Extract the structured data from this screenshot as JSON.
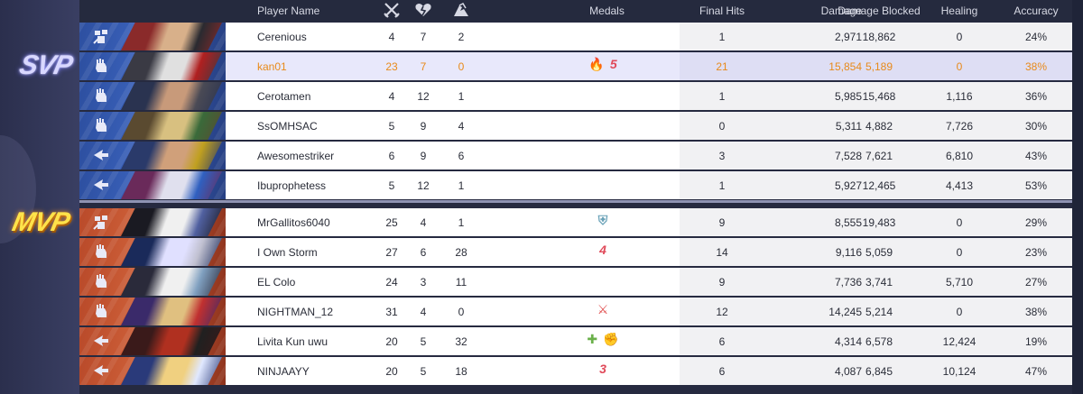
{
  "badges": {
    "svp": "SVP",
    "mvp": "MVP"
  },
  "header": {
    "player_name": "Player Name",
    "kills_icon": "crossed-swords-icon",
    "deaths_icon": "broken-heart-icon",
    "assists_icon": "handshake-icon",
    "medals": "Medals",
    "final_hits": "Final Hits",
    "damage": "Damage",
    "damage_blocked": "Damage Blocked",
    "healing": "Healing",
    "accuracy": "Accuracy"
  },
  "team_colors": {
    "team1": "#2d4fa0",
    "team2": "#b94a2a",
    "highlight_text": "#e88a1a"
  },
  "team1": [
    {
      "name": "Cerenious",
      "role": "vanguard",
      "kills": "4",
      "deaths": "7",
      "assists": "2",
      "medals": [],
      "final_hits": "1",
      "damage": "2,971",
      "damage_blocked": "18,862",
      "healing": "0",
      "accuracy": "24%"
    },
    {
      "name": "kan01",
      "role": "duelist",
      "kills": "23",
      "deaths": "7",
      "assists": "0",
      "medals": [
        {
          "icon": "fire-icon",
          "text": "🔥"
        },
        {
          "icon": "streak-5-icon",
          "text": "5"
        }
      ],
      "final_hits": "21",
      "damage": "15,854",
      "damage_blocked": "5,189",
      "healing": "0",
      "accuracy": "38%"
    },
    {
      "name": "Cerotamen",
      "role": "duelist",
      "kills": "4",
      "deaths": "12",
      "assists": "1",
      "medals": [],
      "final_hits": "1",
      "damage": "5,985",
      "damage_blocked": "15,468",
      "healing": "1,116",
      "accuracy": "36%"
    },
    {
      "name": "SsOMHSAC",
      "role": "duelist",
      "kills": "5",
      "deaths": "9",
      "assists": "4",
      "medals": [],
      "final_hits": "0",
      "damage": "5,311",
      "damage_blocked": "4,882",
      "healing": "7,726",
      "accuracy": "30%"
    },
    {
      "name": "Awesomestriker",
      "role": "strategist",
      "kills": "6",
      "deaths": "9",
      "assists": "6",
      "medals": [],
      "final_hits": "3",
      "damage": "7,528",
      "damage_blocked": "7,621",
      "healing": "6,810",
      "accuracy": "43%"
    },
    {
      "name": "Ibuprophetess",
      "role": "strategist",
      "kills": "5",
      "deaths": "12",
      "assists": "1",
      "medals": [],
      "final_hits": "1",
      "damage": "5,927",
      "damage_blocked": "12,465",
      "healing": "4,413",
      "accuracy": "53%"
    }
  ],
  "team2": [
    {
      "name": "MrGallitos6040",
      "role": "vanguard",
      "kills": "25",
      "deaths": "4",
      "assists": "1",
      "medals": [
        {
          "icon": "shield-icon",
          "text": "⛨"
        }
      ],
      "final_hits": "9",
      "damage": "8,555",
      "damage_blocked": "19,483",
      "healing": "0",
      "accuracy": "29%"
    },
    {
      "name": "I Own Storm",
      "role": "duelist",
      "kills": "27",
      "deaths": "6",
      "assists": "28",
      "medals": [
        {
          "icon": "streak-4-icon",
          "text": "4"
        }
      ],
      "final_hits": "14",
      "damage": "9,116",
      "damage_blocked": "5,059",
      "healing": "0",
      "accuracy": "23%"
    },
    {
      "name": "EL Colo",
      "role": "duelist",
      "kills": "24",
      "deaths": "3",
      "assists": "11",
      "medals": [],
      "final_hits": "9",
      "damage": "7,736",
      "damage_blocked": "3,741",
      "healing": "5,710",
      "accuracy": "27%"
    },
    {
      "name": "NIGHTMAN_12",
      "role": "duelist",
      "kills": "31",
      "deaths": "4",
      "assists": "0",
      "medals": [
        {
          "icon": "crossed-swords-medal-icon",
          "text": "⚔"
        }
      ],
      "final_hits": "12",
      "damage": "14,245",
      "damage_blocked": "5,214",
      "healing": "0",
      "accuracy": "38%"
    },
    {
      "name": "Livita Kun uwu",
      "role": "strategist",
      "kills": "20",
      "deaths": "5",
      "assists": "32",
      "medals": [
        {
          "icon": "plus-icon",
          "text": "✚"
        },
        {
          "icon": "fist-icon",
          "text": "✊"
        }
      ],
      "final_hits": "6",
      "damage": "4,314",
      "damage_blocked": "6,578",
      "healing": "12,424",
      "accuracy": "19%"
    },
    {
      "name": "NINJAAYY",
      "role": "strategist",
      "kills": "20",
      "deaths": "5",
      "assists": "18",
      "medals": [
        {
          "icon": "streak-3-icon",
          "text": "3"
        }
      ],
      "final_hits": "6",
      "damage": "4,087",
      "damage_blocked": "6,845",
      "healing": "10,124",
      "accuracy": "47%"
    }
  ]
}
